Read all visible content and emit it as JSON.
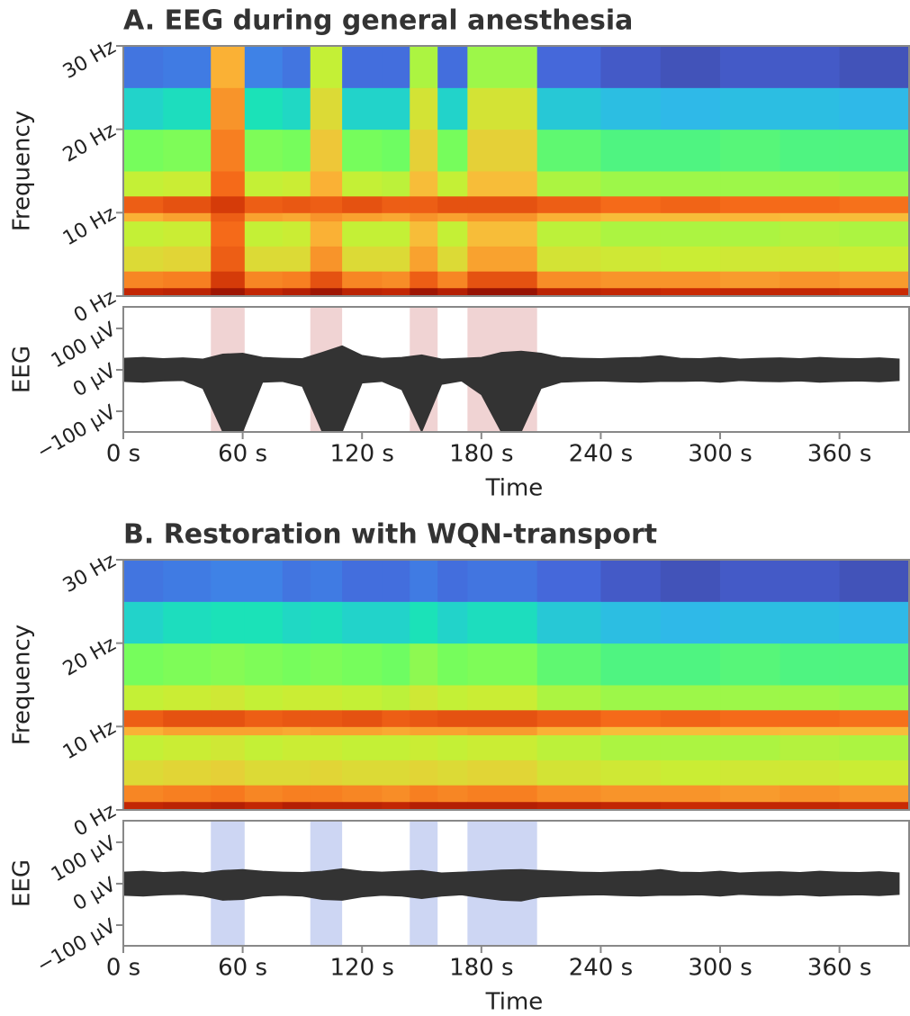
{
  "chart_data": [
    {
      "type": "heatmap",
      "title": "A. EEG during general anesthesia",
      "ylabel": "Frequency",
      "x": [
        0,
        20,
        44,
        61,
        80,
        94,
        110,
        130,
        144,
        158,
        173,
        208,
        240,
        270,
        300,
        330,
        360,
        395
      ],
      "y": [
        0,
        1,
        3,
        6,
        9,
        10,
        12,
        15,
        20,
        25,
        30
      ],
      "zlim": [
        0,
        1
      ],
      "z": [
        [
          0.9,
          0.74,
          0.6,
          0.55,
          0.68,
          0.8,
          0.55,
          0.45,
          0.3,
          0.14
        ],
        [
          0.91,
          0.75,
          0.61,
          0.56,
          0.7,
          0.82,
          0.56,
          0.46,
          0.32,
          0.15
        ],
        [
          0.95,
          0.86,
          0.8,
          0.78,
          0.8,
          0.86,
          0.78,
          0.75,
          0.72,
          0.68
        ],
        [
          0.9,
          0.74,
          0.6,
          0.55,
          0.7,
          0.8,
          0.55,
          0.46,
          0.33,
          0.16
        ],
        [
          0.92,
          0.75,
          0.6,
          0.56,
          0.69,
          0.81,
          0.56,
          0.45,
          0.31,
          0.14
        ],
        [
          0.95,
          0.82,
          0.72,
          0.68,
          0.72,
          0.8,
          0.68,
          0.64,
          0.6,
          0.55
        ],
        [
          0.91,
          0.74,
          0.6,
          0.55,
          0.7,
          0.82,
          0.55,
          0.45,
          0.3,
          0.13
        ],
        [
          0.9,
          0.73,
          0.6,
          0.55,
          0.69,
          0.8,
          0.54,
          0.44,
          0.3,
          0.13
        ],
        [
          0.95,
          0.8,
          0.7,
          0.66,
          0.72,
          0.8,
          0.66,
          0.62,
          0.58,
          0.52
        ],
        [
          0.92,
          0.74,
          0.6,
          0.55,
          0.7,
          0.82,
          0.55,
          0.45,
          0.3,
          0.13
        ],
        [
          0.96,
          0.82,
          0.7,
          0.66,
          0.72,
          0.82,
          0.66,
          0.62,
          0.58,
          0.5
        ],
        [
          0.91,
          0.73,
          0.58,
          0.54,
          0.68,
          0.8,
          0.52,
          0.42,
          0.28,
          0.12
        ],
        [
          0.9,
          0.72,
          0.57,
          0.52,
          0.66,
          0.78,
          0.5,
          0.4,
          0.26,
          0.1
        ],
        [
          0.89,
          0.72,
          0.56,
          0.52,
          0.66,
          0.79,
          0.5,
          0.4,
          0.25,
          0.09
        ],
        [
          0.9,
          0.71,
          0.57,
          0.52,
          0.67,
          0.78,
          0.5,
          0.41,
          0.26,
          0.1
        ],
        [
          0.9,
          0.72,
          0.57,
          0.53,
          0.66,
          0.78,
          0.5,
          0.4,
          0.26,
          0.1
        ],
        [
          0.89,
          0.71,
          0.56,
          0.52,
          0.66,
          0.77,
          0.49,
          0.4,
          0.25,
          0.09
        ]
      ],
      "ylim": [
        0,
        30
      ],
      "yticks": [
        {
          "value": 0,
          "label": "0 Hz"
        },
        {
          "value": 10,
          "label": "10 Hz"
        },
        {
          "value": 20,
          "label": "20 Hz"
        },
        {
          "value": 30,
          "label": "30 Hz"
        }
      ],
      "xlim": [
        0,
        395
      ]
    },
    {
      "type": "area",
      "ylabel": "EEG",
      "xlabel": "Time",
      "color": "#333333",
      "shade_color": "#f0d3d3",
      "shaded": [
        [
          44,
          61
        ],
        [
          94,
          110
        ],
        [
          144,
          158
        ],
        [
          173,
          208
        ]
      ],
      "t": [
        0,
        10,
        20,
        30,
        40,
        50,
        60,
        70,
        80,
        90,
        100,
        110,
        120,
        130,
        140,
        150,
        160,
        170,
        180,
        190,
        200,
        210,
        220,
        230,
        240,
        250,
        260,
        270,
        280,
        290,
        300,
        310,
        320,
        330,
        340,
        350,
        360,
        370,
        380,
        390
      ],
      "upper": [
        28,
        30,
        27,
        29,
        26,
        38,
        40,
        30,
        28,
        27,
        42,
        58,
        35,
        28,
        30,
        36,
        26,
        28,
        30,
        42,
        45,
        40,
        30,
        28,
        27,
        29,
        30,
        34,
        28,
        27,
        30,
        26,
        28,
        29,
        27,
        30,
        28,
        27,
        29,
        26
      ],
      "lower": [
        -28,
        -30,
        -27,
        -26,
        -45,
        -150,
        -150,
        -30,
        -28,
        -40,
        -150,
        -150,
        -32,
        -28,
        -48,
        -150,
        -35,
        -27,
        -60,
        -150,
        -150,
        -45,
        -30,
        -28,
        -27,
        -29,
        -30,
        -28,
        -28,
        -27,
        -30,
        -26,
        -28,
        -29,
        -27,
        -30,
        -28,
        -27,
        -29,
        -26
      ],
      "ylim": [
        -150,
        152
      ],
      "yticks": [
        {
          "value": -100,
          "label": "−100 μV"
        },
        {
          "value": 0,
          "label": "0 μV"
        },
        {
          "value": 100,
          "label": "100 μV"
        }
      ],
      "xlim": [
        0,
        395
      ],
      "xticks": [
        {
          "value": 0,
          "label": "0 s"
        },
        {
          "value": 60,
          "label": "60 s"
        },
        {
          "value": 120,
          "label": "120 s"
        },
        {
          "value": 180,
          "label": "180 s"
        },
        {
          "value": 240,
          "label": "240 s"
        },
        {
          "value": 300,
          "label": "300 s"
        },
        {
          "value": 360,
          "label": "360 s"
        }
      ]
    },
    {
      "type": "heatmap",
      "title": "B. Restoration with WQN-transport",
      "ylabel": "Frequency",
      "x": [
        0,
        20,
        44,
        61,
        80,
        94,
        110,
        130,
        144,
        158,
        173,
        208,
        240,
        270,
        300,
        330,
        360,
        395
      ],
      "y": [
        0,
        1,
        3,
        6,
        9,
        10,
        12,
        15,
        20,
        25,
        30
      ],
      "zlim": [
        0,
        1
      ],
      "z": [
        [
          0.9,
          0.74,
          0.6,
          0.55,
          0.68,
          0.8,
          0.55,
          0.45,
          0.3,
          0.14
        ],
        [
          0.91,
          0.75,
          0.61,
          0.56,
          0.7,
          0.82,
          0.56,
          0.46,
          0.32,
          0.15
        ],
        [
          0.92,
          0.76,
          0.62,
          0.57,
          0.7,
          0.82,
          0.57,
          0.47,
          0.33,
          0.16
        ],
        [
          0.9,
          0.74,
          0.6,
          0.55,
          0.7,
          0.8,
          0.55,
          0.46,
          0.33,
          0.16
        ],
        [
          0.92,
          0.75,
          0.6,
          0.56,
          0.69,
          0.81,
          0.56,
          0.45,
          0.31,
          0.14
        ],
        [
          0.91,
          0.75,
          0.61,
          0.56,
          0.7,
          0.81,
          0.56,
          0.46,
          0.32,
          0.15
        ],
        [
          0.91,
          0.74,
          0.6,
          0.55,
          0.7,
          0.82,
          0.55,
          0.45,
          0.3,
          0.13
        ],
        [
          0.9,
          0.73,
          0.6,
          0.55,
          0.69,
          0.8,
          0.54,
          0.44,
          0.3,
          0.13
        ],
        [
          0.92,
          0.75,
          0.61,
          0.56,
          0.7,
          0.81,
          0.57,
          0.48,
          0.33,
          0.15
        ],
        [
          0.92,
          0.74,
          0.6,
          0.55,
          0.7,
          0.82,
          0.55,
          0.45,
          0.3,
          0.13
        ],
        [
          0.92,
          0.75,
          0.61,
          0.56,
          0.71,
          0.82,
          0.56,
          0.46,
          0.32,
          0.14
        ],
        [
          0.91,
          0.73,
          0.58,
          0.54,
          0.68,
          0.8,
          0.52,
          0.42,
          0.28,
          0.12
        ],
        [
          0.9,
          0.72,
          0.57,
          0.52,
          0.66,
          0.78,
          0.5,
          0.4,
          0.26,
          0.1
        ],
        [
          0.89,
          0.72,
          0.56,
          0.52,
          0.66,
          0.79,
          0.5,
          0.4,
          0.25,
          0.09
        ],
        [
          0.9,
          0.71,
          0.57,
          0.52,
          0.67,
          0.78,
          0.5,
          0.41,
          0.26,
          0.1
        ],
        [
          0.9,
          0.72,
          0.57,
          0.53,
          0.66,
          0.78,
          0.5,
          0.4,
          0.26,
          0.1
        ],
        [
          0.89,
          0.71,
          0.56,
          0.52,
          0.66,
          0.77,
          0.49,
          0.4,
          0.25,
          0.09
        ]
      ],
      "ylim": [
        0,
        30
      ],
      "yticks": [
        {
          "value": 0,
          "label": "0 Hz"
        },
        {
          "value": 10,
          "label": "10 Hz"
        },
        {
          "value": 20,
          "label": "20 Hz"
        },
        {
          "value": 30,
          "label": "30 Hz"
        }
      ],
      "xlim": [
        0,
        395
      ]
    },
    {
      "type": "area",
      "ylabel": "EEG",
      "xlabel": "Time",
      "color": "#333333",
      "shade_color": "#cdd6f3",
      "shaded": [
        [
          44,
          61
        ],
        [
          94,
          110
        ],
        [
          144,
          158
        ],
        [
          173,
          208
        ]
      ],
      "t": [
        0,
        10,
        20,
        30,
        40,
        50,
        60,
        70,
        80,
        90,
        100,
        110,
        120,
        130,
        140,
        150,
        160,
        170,
        180,
        190,
        200,
        210,
        220,
        230,
        240,
        250,
        260,
        270,
        280,
        290,
        300,
        310,
        320,
        330,
        340,
        350,
        360,
        370,
        380,
        390
      ],
      "upper": [
        28,
        30,
        27,
        29,
        26,
        32,
        34,
        30,
        28,
        27,
        30,
        36,
        30,
        28,
        30,
        32,
        26,
        28,
        30,
        33,
        34,
        32,
        30,
        28,
        27,
        29,
        30,
        34,
        28,
        27,
        30,
        26,
        28,
        29,
        27,
        30,
        28,
        27,
        29,
        26
      ],
      "lower": [
        -28,
        -30,
        -27,
        -26,
        -30,
        -40,
        -38,
        -30,
        -28,
        -30,
        -38,
        -40,
        -32,
        -28,
        -30,
        -36,
        -30,
        -27,
        -34,
        -40,
        -42,
        -32,
        -30,
        -28,
        -27,
        -29,
        -30,
        -28,
        -28,
        -27,
        -30,
        -26,
        -28,
        -29,
        -27,
        -30,
        -28,
        -27,
        -29,
        -26
      ],
      "ylim": [
        -150,
        152
      ],
      "yticks": [
        {
          "value": -100,
          "label": "−100 μV"
        },
        {
          "value": 0,
          "label": "0 μV"
        },
        {
          "value": 100,
          "label": "100 μV"
        }
      ],
      "xlim": [
        0,
        395
      ],
      "xticks": [
        {
          "value": 0,
          "label": "0 s"
        },
        {
          "value": 60,
          "label": "60 s"
        },
        {
          "value": 120,
          "label": "120 s"
        },
        {
          "value": 180,
          "label": "180 s"
        },
        {
          "value": 240,
          "label": "240 s"
        },
        {
          "value": 300,
          "label": "300 s"
        },
        {
          "value": 360,
          "label": "360 s"
        }
      ]
    }
  ]
}
